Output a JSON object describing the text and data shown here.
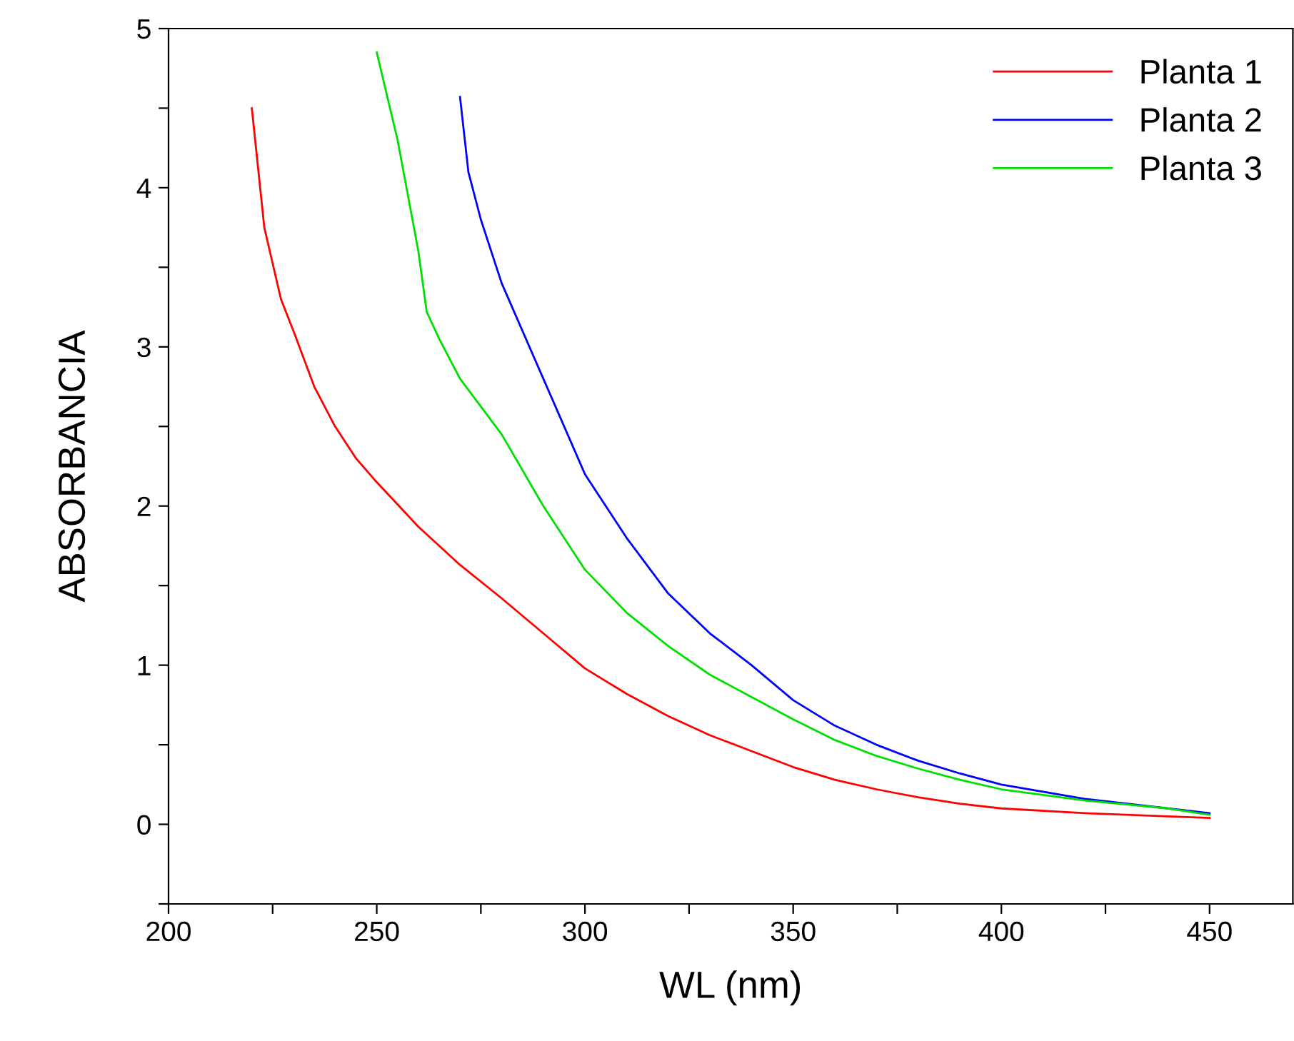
{
  "chart_data": {
    "type": "line",
    "xlabel": "WL (nm)",
    "ylabel": "ABSORBANCIA",
    "xlim": [
      200,
      470
    ],
    "ylim": [
      -0.5,
      5
    ],
    "xticks": [
      200,
      {
        "value": 225,
        "label": null
      },
      250,
      {
        "value": 275,
        "label": null
      },
      300,
      {
        "value": 325,
        "label": null
      },
      350,
      {
        "value": 375,
        "label": null
      },
      400,
      {
        "value": 425,
        "label": null
      },
      450
    ],
    "yticks": [
      {
        "value": -0.5,
        "label": null
      },
      0,
      {
        "value": 0.5,
        "label": null
      },
      1,
      {
        "value": 1.5,
        "label": null
      },
      2,
      {
        "value": 2.5,
        "label": null
      },
      3,
      {
        "value": 3.5,
        "label": null
      },
      4,
      {
        "value": 4.5,
        "label": null
      },
      5
    ],
    "legend": "top right",
    "grid": false,
    "marker": "none",
    "line_style": "solid",
    "series": [
      {
        "name": "Planta 1",
        "color": "#ff0000",
        "x": [
          220,
          223,
          227,
          230,
          235,
          240,
          245,
          250,
          260,
          270,
          280,
          290,
          300,
          310,
          320,
          330,
          340,
          350,
          360,
          370,
          380,
          390,
          400,
          420,
          440,
          450
        ],
        "values": [
          4.5,
          3.75,
          3.3,
          3.1,
          2.75,
          2.5,
          2.3,
          2.15,
          1.87,
          1.63,
          1.42,
          1.2,
          0.98,
          0.82,
          0.68,
          0.56,
          0.46,
          0.36,
          0.28,
          0.22,
          0.17,
          0.13,
          0.1,
          0.07,
          0.05,
          0.04
        ]
      },
      {
        "name": "Planta 2",
        "color": "#0000ff",
        "x": [
          270,
          272,
          275,
          280,
          290,
          300,
          310,
          320,
          330,
          340,
          350,
          360,
          370,
          380,
          390,
          400,
          420,
          440,
          450
        ],
        "values": [
          4.57,
          4.1,
          3.8,
          3.4,
          2.8,
          2.2,
          1.8,
          1.45,
          1.2,
          1.0,
          0.78,
          0.62,
          0.5,
          0.4,
          0.32,
          0.25,
          0.16,
          0.1,
          0.07
        ]
      },
      {
        "name": "Planta 3",
        "color": "#00e000",
        "x": [
          250,
          255,
          260,
          262,
          265,
          270,
          280,
          290,
          300,
          310,
          320,
          330,
          340,
          350,
          360,
          370,
          380,
          390,
          400,
          420,
          440,
          450
        ],
        "values": [
          4.85,
          4.3,
          3.6,
          3.22,
          3.05,
          2.8,
          2.45,
          2.0,
          1.6,
          1.33,
          1.12,
          0.94,
          0.8,
          0.66,
          0.53,
          0.43,
          0.35,
          0.28,
          0.22,
          0.15,
          0.1,
          0.06
        ]
      }
    ]
  }
}
